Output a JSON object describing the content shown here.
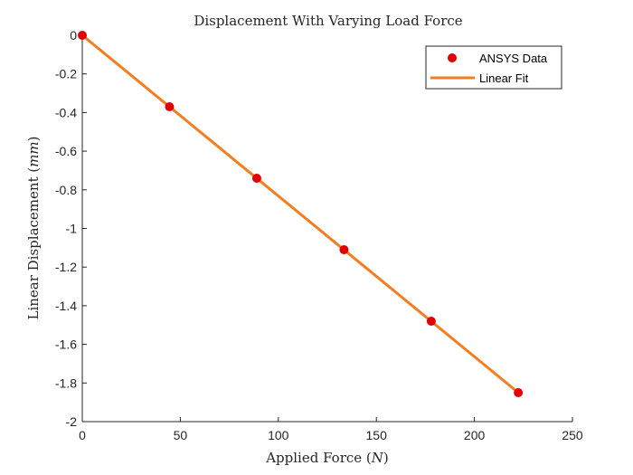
{
  "chart_data": {
    "type": "scatter",
    "title": "Displacement With Varying Load Force",
    "xlabel_text": "Applied Force (",
    "xlabel_unit": "N",
    "xlabel_close": ")",
    "ylabel_text": "Linear Displacement (",
    "ylabel_unit": "mm",
    "ylabel_close": ")",
    "xlim": [
      0,
      250
    ],
    "ylim": [
      -2,
      0
    ],
    "x_ticks": [
      0,
      50,
      100,
      150,
      200,
      250
    ],
    "x_tick_labels": [
      "0",
      "50",
      "100",
      "150",
      "200",
      "250"
    ],
    "y_ticks": [
      0,
      -0.2,
      -0.4,
      -0.6,
      -0.8,
      -1,
      -1.2,
      -1.4,
      -1.6,
      -1.8,
      -2
    ],
    "y_tick_labels": [
      "0",
      "-0.2",
      "-0.4",
      "-0.6",
      "-0.8",
      "-1",
      "-1.2",
      "-1.4",
      "-1.6",
      "-1.8",
      "-2"
    ],
    "grid": false,
    "legend_position": "top-right",
    "series": [
      {
        "name": "ANSYS Data",
        "kind": "markers",
        "color": "#e00000",
        "x": [
          0,
          44.5,
          89,
          133.5,
          178,
          222.4
        ],
        "y": [
          0,
          -0.37,
          -0.74,
          -1.11,
          -1.48,
          -1.85
        ]
      },
      {
        "name": "Linear Fit",
        "kind": "line",
        "color": "#f57c1f",
        "x": [
          0,
          222.4
        ],
        "y": [
          0,
          -1.85
        ]
      }
    ]
  }
}
